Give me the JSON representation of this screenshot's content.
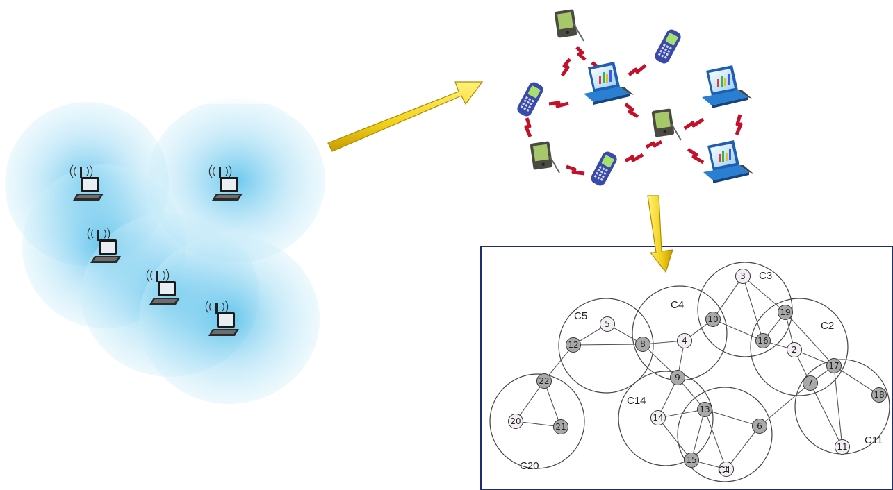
{
  "graph": {
    "nodes": [
      {
        "id": "n1",
        "label": "1",
        "filled": false
      },
      {
        "id": "n2",
        "label": "2",
        "filled": false
      },
      {
        "id": "n3",
        "label": "3",
        "filled": false
      },
      {
        "id": "n4",
        "label": "4",
        "filled": false
      },
      {
        "id": "n5",
        "label": "5",
        "filled": false
      },
      {
        "id": "n6",
        "label": "6",
        "filled": true
      },
      {
        "id": "n7",
        "label": "7",
        "filled": true
      },
      {
        "id": "n8",
        "label": "8",
        "filled": true
      },
      {
        "id": "n9",
        "label": "9",
        "filled": true
      },
      {
        "id": "n10",
        "label": "10",
        "filled": true
      },
      {
        "id": "n11",
        "label": "11",
        "filled": false
      },
      {
        "id": "n12",
        "label": "12",
        "filled": true
      },
      {
        "id": "n13",
        "label": "13",
        "filled": true
      },
      {
        "id": "n14",
        "label": "14",
        "filled": false
      },
      {
        "id": "n15",
        "label": "15",
        "filled": true
      },
      {
        "id": "n16",
        "label": "16",
        "filled": true
      },
      {
        "id": "n17",
        "label": "17",
        "filled": true
      },
      {
        "id": "n18",
        "label": "18",
        "filled": true
      },
      {
        "id": "n19",
        "label": "19",
        "filled": true
      },
      {
        "id": "n20",
        "label": "20",
        "filled": false
      },
      {
        "id": "n21",
        "label": "21",
        "filled": true
      },
      {
        "id": "n22",
        "label": "22",
        "filled": true
      }
    ],
    "edges": [
      [
        "n5",
        "n12"
      ],
      [
        "n5",
        "n8"
      ],
      [
        "n12",
        "n8"
      ],
      [
        "n12",
        "n22"
      ],
      [
        "n22",
        "n20"
      ],
      [
        "n22",
        "n21"
      ],
      [
        "n20",
        "n21"
      ],
      [
        "n8",
        "n4"
      ],
      [
        "n8",
        "n9"
      ],
      [
        "n4",
        "n10"
      ],
      [
        "n4",
        "n9"
      ],
      [
        "n3",
        "n10"
      ],
      [
        "n3",
        "n16"
      ],
      [
        "n3",
        "n19"
      ],
      [
        "n10",
        "n16"
      ],
      [
        "n19",
        "n16"
      ],
      [
        "n19",
        "n2"
      ],
      [
        "n19",
        "n17"
      ],
      [
        "n16",
        "n2"
      ],
      [
        "n2",
        "n17"
      ],
      [
        "n2",
        "n7"
      ],
      [
        "n17",
        "n7"
      ],
      [
        "n17",
        "n18"
      ],
      [
        "n17",
        "n11"
      ],
      [
        "n7",
        "n11"
      ],
      [
        "n7",
        "n6"
      ],
      [
        "n9",
        "n13"
      ],
      [
        "n9",
        "n14"
      ],
      [
        "n13",
        "n14"
      ],
      [
        "n13",
        "n15"
      ],
      [
        "n13",
        "n6"
      ],
      [
        "n13",
        "n1"
      ],
      [
        "n14",
        "n15"
      ],
      [
        "n15",
        "n1"
      ],
      [
        "n1",
        "n6"
      ]
    ],
    "clusters": [
      {
        "id": "c5",
        "label": "C5"
      },
      {
        "id": "c4",
        "label": "C4"
      },
      {
        "id": "c3",
        "label": "C3"
      },
      {
        "id": "c2",
        "label": "C2"
      },
      {
        "id": "c20",
        "label": "C20"
      },
      {
        "id": "c14",
        "label": "C14"
      },
      {
        "id": "c1",
        "label": "C1"
      },
      {
        "id": "c11",
        "label": "C11"
      }
    ]
  },
  "colors": {
    "frame_border": "#1f2e6e",
    "arrow_fill": "#f2d11a",
    "arrow_edge": "#b08a00",
    "link_red": "#c4102a",
    "coverage_blue": "#3cb6e8",
    "node_filled": "#a9a9a9",
    "node_empty": "#f3eef3",
    "laptop_blue": "#2a7fd3"
  },
  "icons": {
    "wireless_laptop": "wireless-laptop-icon",
    "laptop": "laptop-icon",
    "pda": "pda-icon",
    "phone": "mobile-phone-icon",
    "arrow": "yellow-arrow-icon"
  }
}
